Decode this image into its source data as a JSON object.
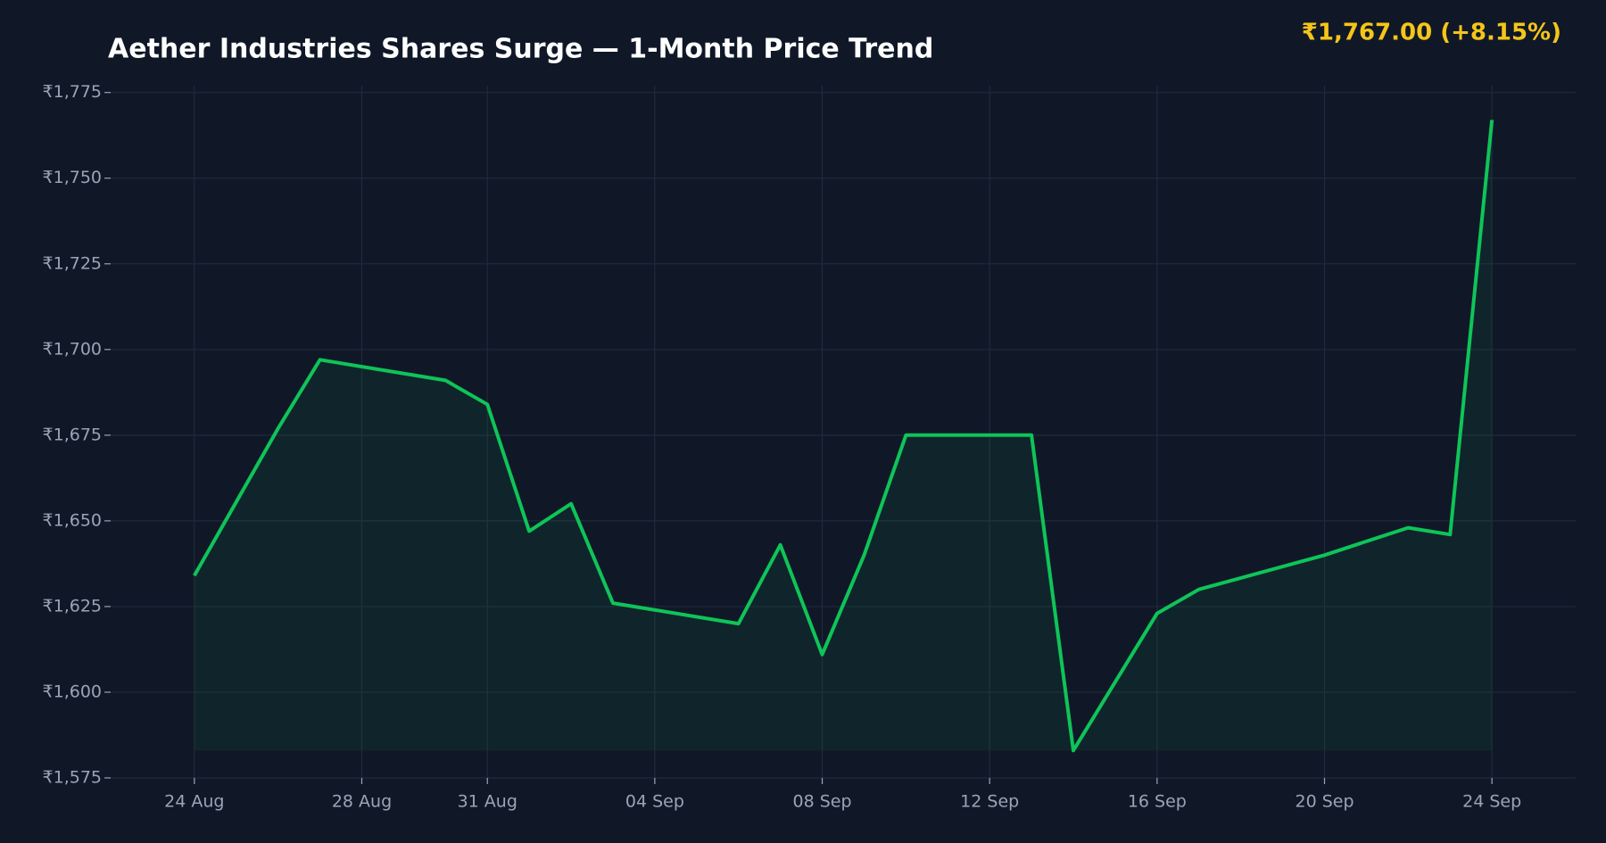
{
  "chart_data": {
    "type": "line",
    "title": "Aether Industries Shares Surge — 1-Month Price Trend",
    "annotation": "₹1,767.00  (+8.15%)",
    "x": [
      "24 Aug",
      "26 Aug",
      "27 Aug",
      "30 Aug",
      "31 Aug",
      "01 Sep",
      "02 Sep",
      "03 Sep",
      "06 Sep",
      "07 Sep",
      "08 Sep",
      "09 Sep",
      "10 Sep",
      "13 Sep",
      "14 Sep",
      "16 Sep",
      "17 Sep",
      "20 Sep",
      "21 Sep",
      "22 Sep",
      "23 Sep",
      "24 Sep"
    ],
    "values": [
      1634,
      1677,
      1697,
      1691,
      1684,
      1647,
      1655,
      1626,
      1620,
      1643,
      1611,
      1640,
      1675,
      1675,
      1583,
      1623,
      1630,
      1640,
      1644,
      1648,
      1646,
      1767
    ],
    "color": "#0fc458",
    "xlim": [
      "22 Aug",
      "26 Sep"
    ],
    "xticks": [
      "24 Aug",
      "28 Aug",
      "31 Aug",
      "04 Sep",
      "08 Sep",
      "12 Sep",
      "16 Sep",
      "20 Sep",
      "24 Sep"
    ],
    "ylim": [
      1575,
      1777
    ],
    "yticks": [
      {
        "value": 1575,
        "label": "₹1,575"
      },
      {
        "value": 1600,
        "label": "₹1,600"
      },
      {
        "value": 1625,
        "label": "₹1,625"
      },
      {
        "value": 1650,
        "label": "₹1,650"
      },
      {
        "value": 1675,
        "label": "₹1,675"
      },
      {
        "value": 1700,
        "label": "₹1,700"
      },
      {
        "value": 1725,
        "label": "₹1,725"
      },
      {
        "value": 1750,
        "label": "₹1,750"
      },
      {
        "value": 1775,
        "label": "₹1,775"
      }
    ],
    "grid": true
  }
}
